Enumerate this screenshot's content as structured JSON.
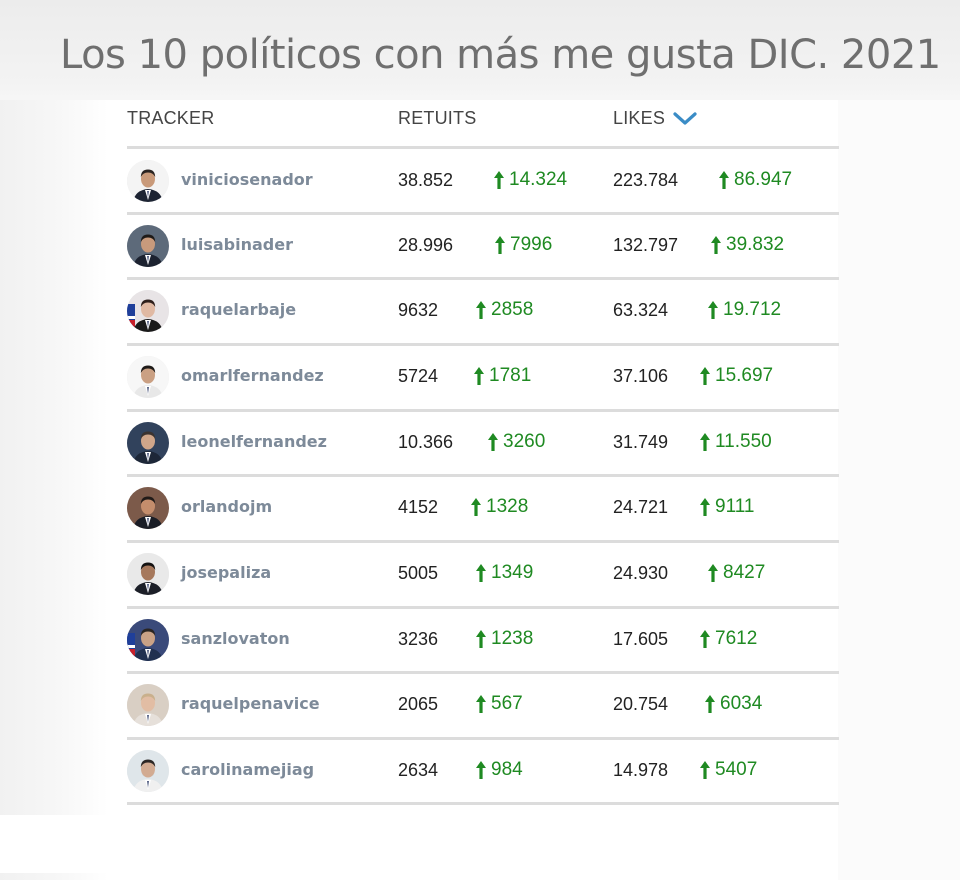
{
  "title": "Los 10 políticos con más me gusta DIC. 2021",
  "columns": {
    "tracker": "TRACKER",
    "retuits": "RETUITS",
    "likes": "LIKES"
  },
  "sort_icon": "chevron-down-icon",
  "colors": {
    "accent": "#3a8cc6",
    "up": "#1f8a22",
    "name": "#7d8a99"
  },
  "rows": [
    {
      "handle": "viniciosenador",
      "retuits": "38.852",
      "retuits_up": "14.324",
      "likes": "223.784",
      "likes_up": "86.947"
    },
    {
      "handle": "luisabinader",
      "retuits": "28.996",
      "retuits_up": "7996",
      "likes": "132.797",
      "likes_up": "39.832"
    },
    {
      "handle": "raquelarbaje",
      "retuits": "9632",
      "retuits_up": "2858",
      "likes": "63.324",
      "likes_up": "19.712"
    },
    {
      "handle": "omarlfernandez",
      "retuits": "5724",
      "retuits_up": "1781",
      "likes": "37.106",
      "likes_up": "15.697"
    },
    {
      "handle": "leonelfernandez",
      "retuits": "10.366",
      "retuits_up": "3260",
      "likes": "31.749",
      "likes_up": "11.550"
    },
    {
      "handle": "orlandojm",
      "retuits": "4152",
      "retuits_up": "1328",
      "likes": "24.721",
      "likes_up": "9111"
    },
    {
      "handle": "josepaliza",
      "retuits": "5005",
      "retuits_up": "1349",
      "likes": "24.930",
      "likes_up": "8427"
    },
    {
      "handle": "sanzlovaton",
      "retuits": "3236",
      "retuits_up": "1238",
      "likes": "17.605",
      "likes_up": "7612"
    },
    {
      "handle": "raquelpenavice",
      "retuits": "2065",
      "retuits_up": "567",
      "likes": "20.754",
      "likes_up": "6034"
    },
    {
      "handle": "carolinamejiag",
      "retuits": "2634",
      "retuits_up": "984",
      "likes": "14.978",
      "likes_up": "5407"
    }
  ]
}
